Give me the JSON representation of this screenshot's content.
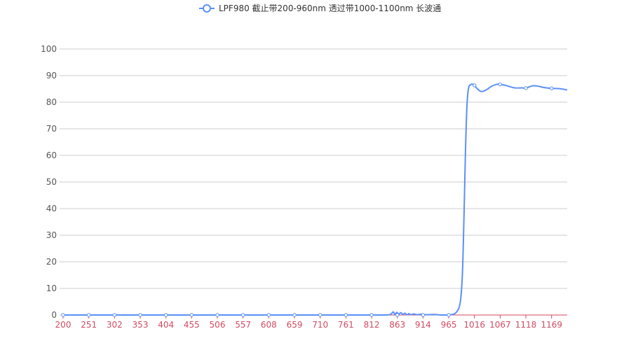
{
  "chart_data": {
    "type": "line",
    "title": "",
    "xlabel": "",
    "ylabel": "",
    "legend": {
      "position": "top-center",
      "label": "LPF980 截止带200-960nm 透过带1000-1100nm 长波通"
    },
    "colors": {
      "series": "#5b8ff9",
      "x_axis": "#d14a61",
      "grid": "#cccccc",
      "y_text": "#555555"
    },
    "grid": true,
    "ylim": [
      0,
      100
    ],
    "y_ticks": [
      "0",
      "10",
      "20",
      "30",
      "40",
      "50",
      "60",
      "70",
      "80",
      "90",
      "100"
    ],
    "xlim": [
      200,
      1200
    ],
    "x_ticks": [
      "200",
      "251",
      "302",
      "353",
      "404",
      "455",
      "506",
      "557",
      "608",
      "659",
      "710",
      "761",
      "812",
      "863",
      "914",
      "965",
      "1016",
      "1067",
      "1118",
      "1169"
    ],
    "series": [
      {
        "name": "LPF980 截止带200-960nm 透过带1000-1100nm 长波通",
        "points": [
          [
            200,
            0
          ],
          [
            251,
            0
          ],
          [
            302,
            0
          ],
          [
            353,
            0
          ],
          [
            404,
            0
          ],
          [
            455,
            0
          ],
          [
            506,
            0
          ],
          [
            557,
            0
          ],
          [
            608,
            0
          ],
          [
            659,
            0
          ],
          [
            710,
            0
          ],
          [
            761,
            0
          ],
          [
            812,
            0
          ],
          [
            840,
            0
          ],
          [
            850,
            0.3
          ],
          [
            855,
            1.2
          ],
          [
            858,
            0.2
          ],
          [
            862,
            1.0
          ],
          [
            866,
            0.3
          ],
          [
            870,
            0.9
          ],
          [
            874,
            0.2
          ],
          [
            878,
            0.7
          ],
          [
            882,
            0.1
          ],
          [
            886,
            0.5
          ],
          [
            890,
            0.1
          ],
          [
            896,
            0.4
          ],
          [
            902,
            0.1
          ],
          [
            910,
            0.3
          ],
          [
            920,
            0.1
          ],
          [
            935,
            0.2
          ],
          [
            950,
            0
          ],
          [
            965,
            0
          ],
          [
            980,
            1
          ],
          [
            988,
            5
          ],
          [
            992,
            15
          ],
          [
            995,
            35
          ],
          [
            998,
            60
          ],
          [
            1001,
            78
          ],
          [
            1004,
            85
          ],
          [
            1008,
            86.5
          ],
          [
            1012,
            86.8
          ],
          [
            1016,
            86.3
          ],
          [
            1022,
            85
          ],
          [
            1030,
            84
          ],
          [
            1040,
            84.7
          ],
          [
            1050,
            86
          ],
          [
            1060,
            86.7
          ],
          [
            1067,
            86.7
          ],
          [
            1080,
            86.2
          ],
          [
            1095,
            85.4
          ],
          [
            1110,
            85.4
          ],
          [
            1118,
            85.3
          ],
          [
            1130,
            86.1
          ],
          [
            1140,
            86.1
          ],
          [
            1155,
            85.5
          ],
          [
            1169,
            85.2
          ],
          [
            1185,
            85.1
          ],
          [
            1200,
            84.6
          ]
        ],
        "markers": [
          [
            200,
            0
          ],
          [
            251,
            0
          ],
          [
            302,
            0
          ],
          [
            353,
            0
          ],
          [
            404,
            0
          ],
          [
            455,
            0
          ],
          [
            506,
            0
          ],
          [
            557,
            0
          ],
          [
            608,
            0
          ],
          [
            659,
            0
          ],
          [
            710,
            0
          ],
          [
            761,
            0
          ],
          [
            812,
            0
          ],
          [
            863,
            0
          ],
          [
            914,
            0
          ],
          [
            965,
            0
          ],
          [
            1016,
            86.3
          ],
          [
            1067,
            86.7
          ],
          [
            1118,
            85.3
          ],
          [
            1169,
            85.2
          ]
        ]
      }
    ]
  }
}
